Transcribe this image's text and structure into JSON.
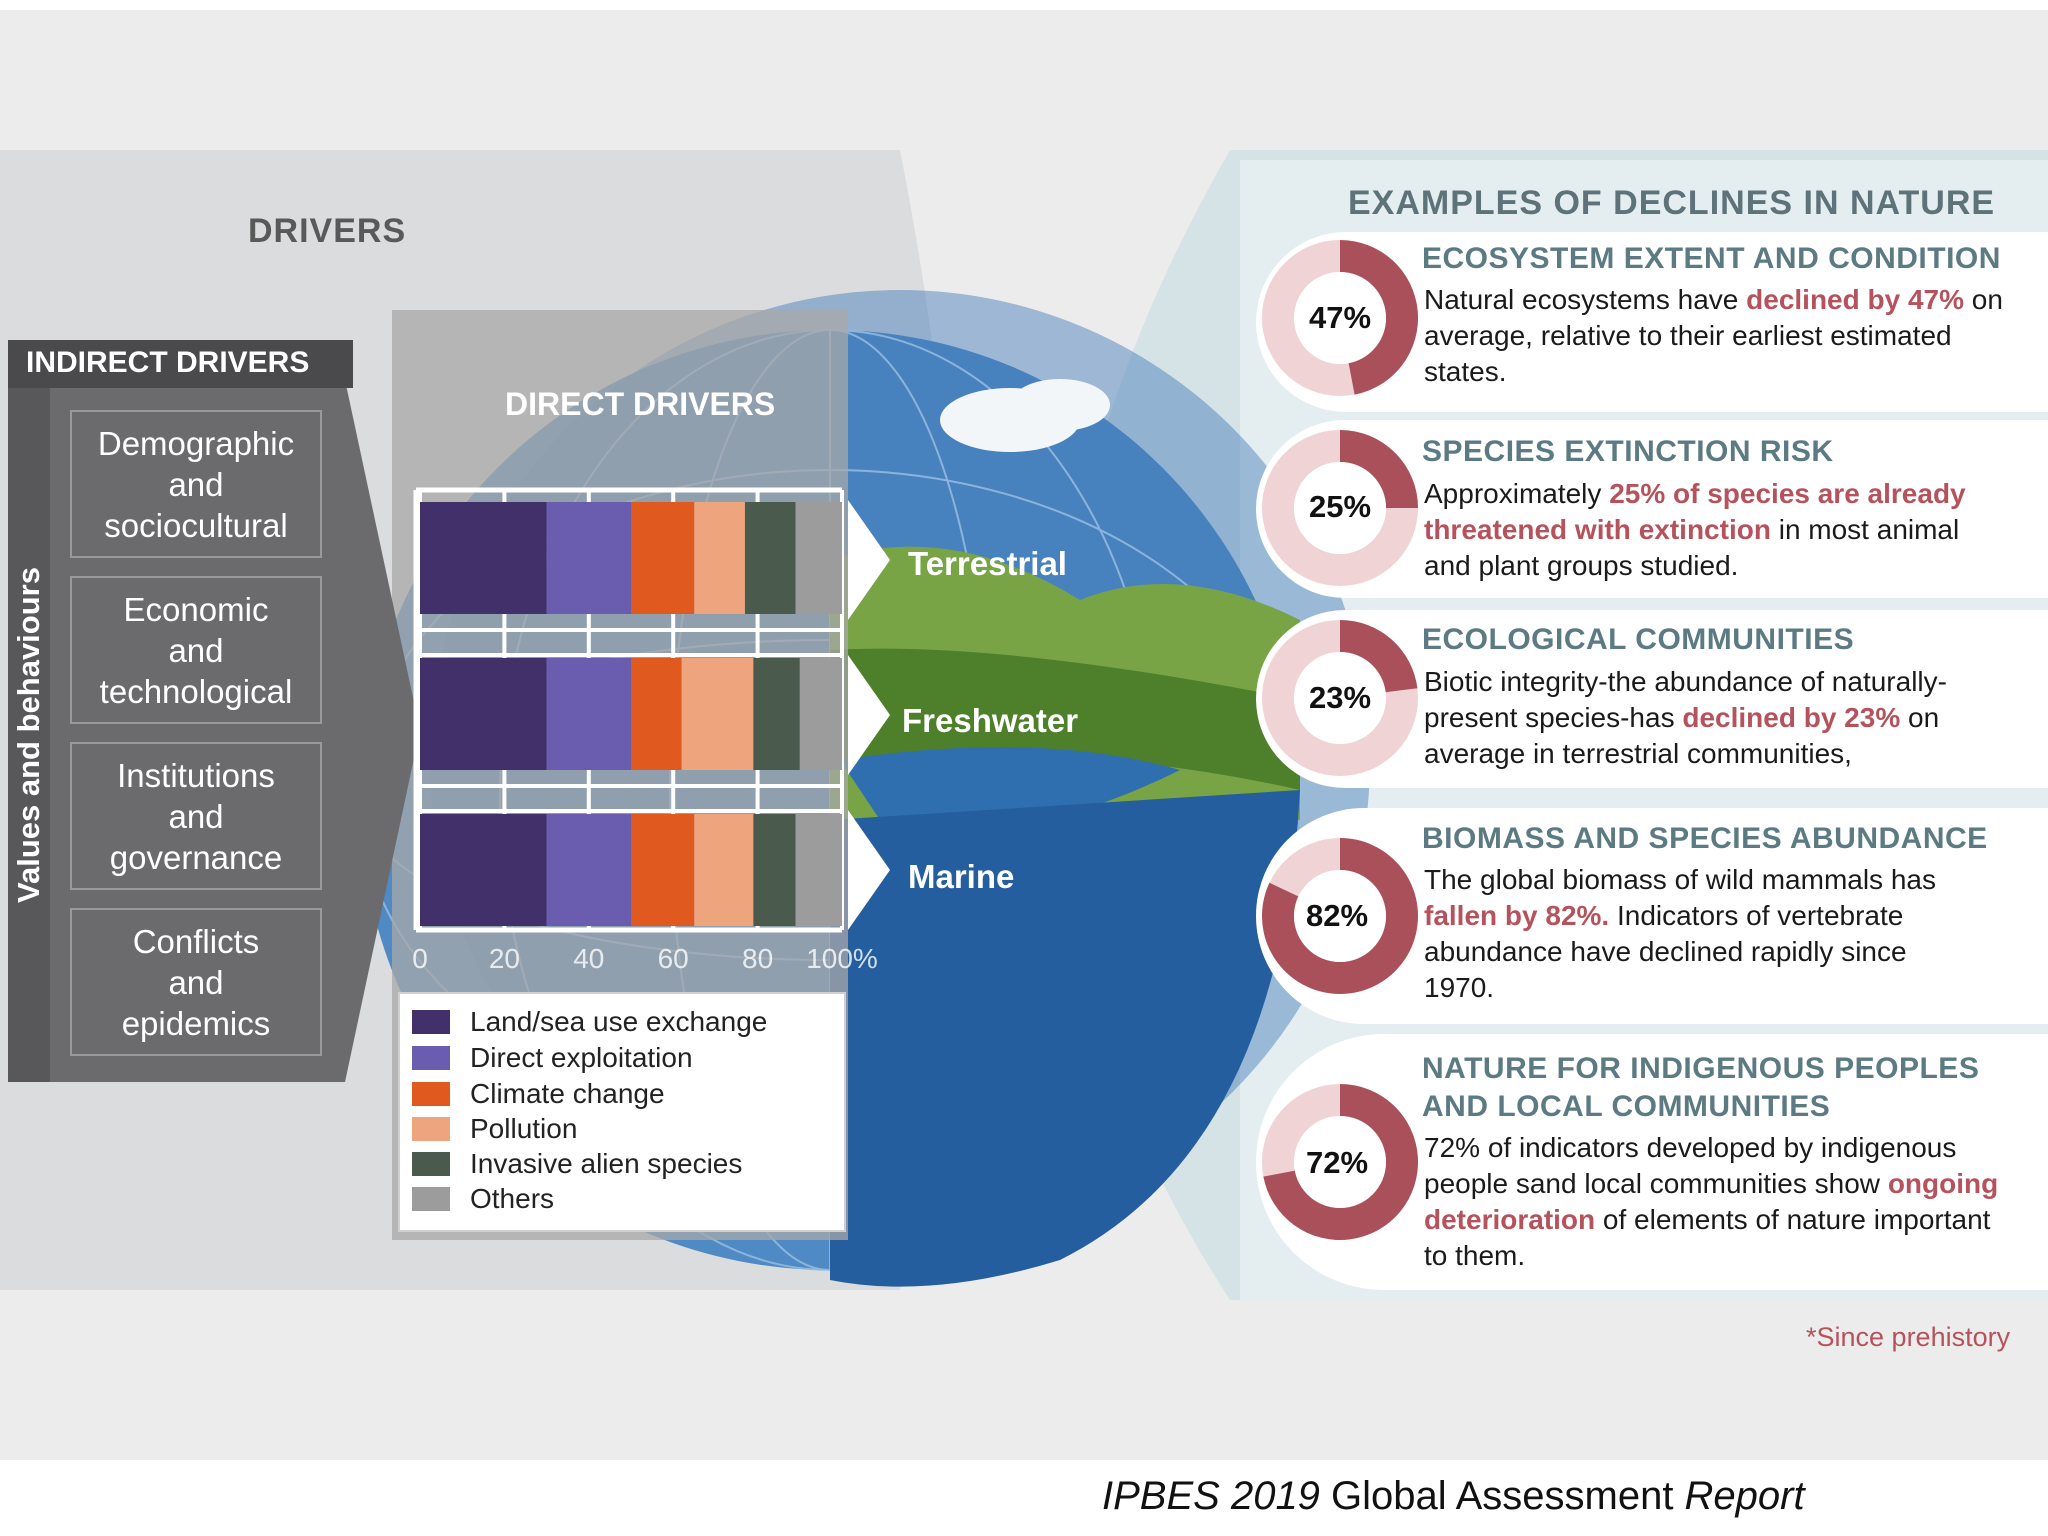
{
  "headings": {
    "drivers": "DRIVERS",
    "indirect_drivers": "INDIRECT DRIVERS",
    "direct_drivers": "DIRECT DRIVERS",
    "values_behaviours": "Values and behaviours",
    "examples": "EXAMPLES OF DECLINES IN NATURE"
  },
  "indirect_drivers": [
    {
      "line1": "Demographic",
      "line2": "and",
      "line3": "sociocultural"
    },
    {
      "line1": "Economic",
      "line2": "and",
      "line3": "technological"
    },
    {
      "line1": "Institutions",
      "line2": "and",
      "line3": "governance"
    },
    {
      "line1": "Conflicts",
      "line2": "and",
      "line3": "epidemics"
    }
  ],
  "realms": {
    "terrestrial": "Terrestrial",
    "freshwater": "Freshwater",
    "marine": "Marine"
  },
  "legend": [
    {
      "label": "Land/sea use exchange",
      "color": "#42306a"
    },
    {
      "label": "Direct exploitation",
      "color": "#6a5cae"
    },
    {
      "label": "Climate change",
      "color": "#e0591f"
    },
    {
      "label": "Pollution",
      "color": "#eea57e"
    },
    {
      "label": "Invasive alien species",
      "color": "#4a5a4c"
    },
    {
      "label": "Others",
      "color": "#9c9c9c"
    }
  ],
  "chart_data": {
    "type": "bar",
    "orientation": "horizontal",
    "stacked": true,
    "title": "DIRECT DRIVERS",
    "categories": [
      "Terrestrial",
      "Freshwater",
      "Marine"
    ],
    "xlim": [
      0,
      100
    ],
    "xticks": [
      "0",
      "20",
      "40",
      "60",
      "80",
      "100%"
    ],
    "series": [
      {
        "name": "Land/sea use exchange",
        "values": [
          30,
          30,
          30
        ]
      },
      {
        "name": "Direct exploitation",
        "values": [
          20,
          20,
          20
        ]
      },
      {
        "name": "Climate change",
        "values": [
          15,
          12,
          15
        ]
      },
      {
        "name": "Pollution",
        "values": [
          12,
          17,
          14
        ]
      },
      {
        "name": "Invasive alien species",
        "values": [
          12,
          11,
          10
        ]
      },
      {
        "name": "Others",
        "values": [
          11,
          10,
          11
        ]
      }
    ]
  },
  "cards": [
    {
      "pct_label": "47%",
      "pct": 47,
      "title1": "ECOSYSTEM EXTENT AND CONDITION",
      "title2": "",
      "text_a": "Natural ecosystems have ",
      "hl_a": "declined by 47%",
      "text_b": " on average, relative to their earliest estimated states.",
      "hl_b": "",
      "text_c": ""
    },
    {
      "pct_label": "25%",
      "pct": 25,
      "title1": "SPECIES EXTINCTION RISK",
      "title2": "",
      "text_a": "Approximately ",
      "hl_a": "25% of species are already threatened with extinction",
      "text_b": " in most animal and plant groups studied.",
      "hl_b": "",
      "text_c": ""
    },
    {
      "pct_label": "23%",
      "pct": 23,
      "title1": "ECOLOGICAL COMMUNITIES",
      "title2": "",
      "text_a": "Biotic integrity-the abundance of naturally-present species-has ",
      "hl_a": "declined by 23%",
      "text_b": " on average in terrestrial communities,",
      "hl_b": "",
      "text_c": ""
    },
    {
      "pct_label": "82%",
      "pct": 82,
      "title1": "BIOMASS AND SPECIES ABUNDANCE",
      "title2": "",
      "text_a": "The global biomass of wild mammals has ",
      "hl_a": "fallen by 82%.",
      "text_b": " Indicators of vertebrate abundance have declined rapidly since 1970.",
      "hl_b": "",
      "text_c": ""
    },
    {
      "pct_label": "72%",
      "pct": 72,
      "title1": "NATURE FOR INDIGENOUS PEOPLES",
      "title2": "AND LOCAL COMMUNITIES",
      "text_a": "72% of indicators developed by indigenous people sand local communities show ",
      "hl_a": "ongoing deterioration",
      "text_b": " of elements of nature important to them.",
      "hl_b": "",
      "text_c": ""
    }
  ],
  "footnote": "*Since prehistory",
  "caption": {
    "part1": "IPBES 2019",
    "part2": " Global Assessment ",
    "part3": "Report"
  },
  "colors": {
    "donut_dark": "#a9505a",
    "donut_light": "#efd3d5",
    "accent_text": "#b5525c"
  }
}
